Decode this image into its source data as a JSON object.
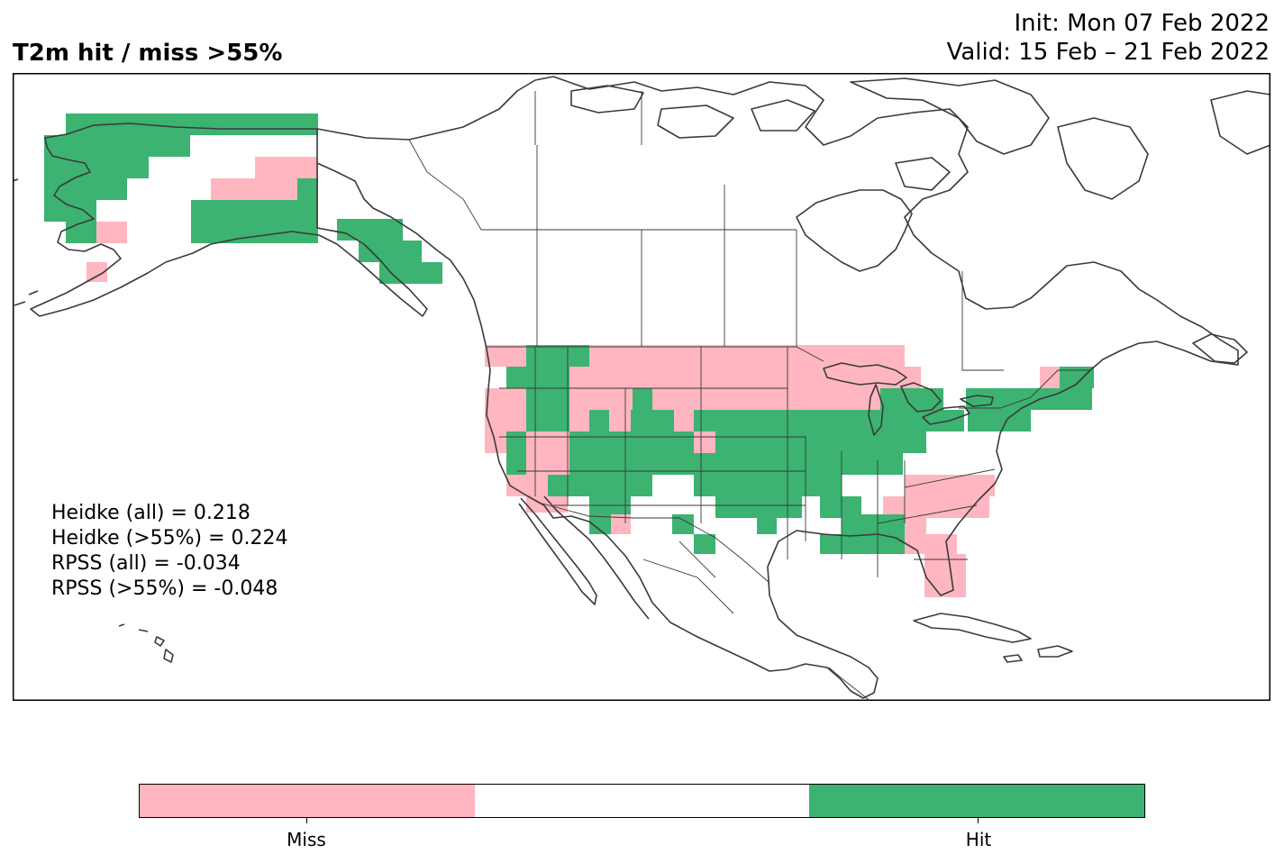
{
  "title": "T2m hit / miss  >55%",
  "init_line": "Init: Mon 07 Feb 2022",
  "valid_line": "Valid: 15 Feb – 21 Feb 2022",
  "stats": [
    "Heidke (all) = 0.218",
    "Heidke (>55%) = 0.224",
    "RPSS (all) = -0.034",
    "RPSS (>55%) = -0.048"
  ],
  "colorbar": {
    "colors": [
      "#ffb6c1",
      "#ffffff",
      "#3cb371"
    ],
    "tick_labels": [
      "Miss",
      "Hit"
    ]
  },
  "map": {
    "region": "North America",
    "colors": {
      "miss": "#ffb6c1",
      "hit": "#3cb371",
      "coast": "#3a3a3a",
      "border": "#3a3a3a"
    }
  }
}
